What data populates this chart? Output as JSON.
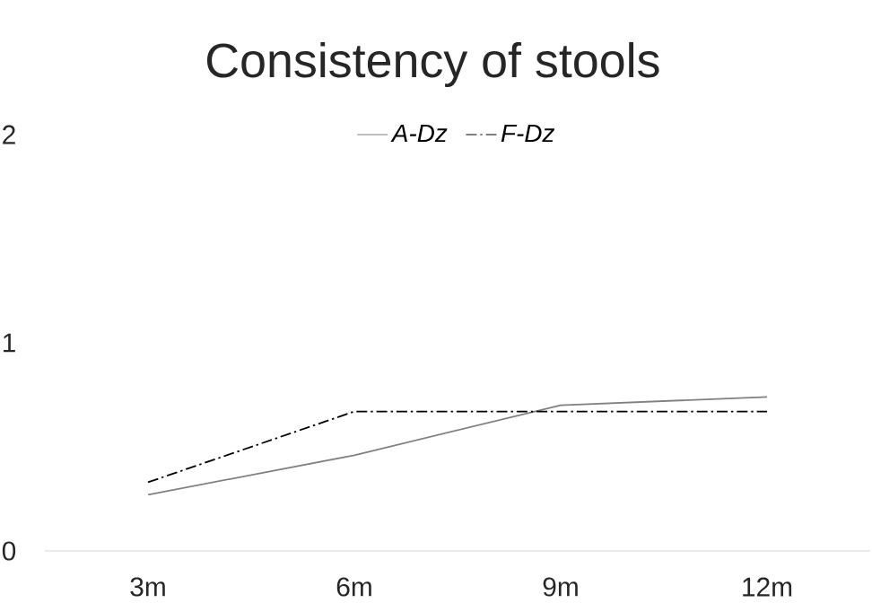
{
  "chart_data": {
    "type": "line",
    "title": "Consistency of stools",
    "categories": [
      "3m",
      "6m",
      "9m",
      "12m"
    ],
    "series": [
      {
        "name": "*A-Dz*",
        "color": "#808080",
        "line_style": "solid",
        "values": [
          0.27,
          0.46,
          0.7,
          0.74
        ]
      },
      {
        "name": "*F-Dz*",
        "color": "#000000",
        "line_style": "dashed",
        "values": [
          0.33,
          0.67,
          0.67,
          0.67
        ]
      }
    ],
    "ylim": [
      0,
      2
    ],
    "yticks": [
      0,
      1,
      2
    ],
    "legend": "top",
    "marker": "none",
    "grid": false
  }
}
